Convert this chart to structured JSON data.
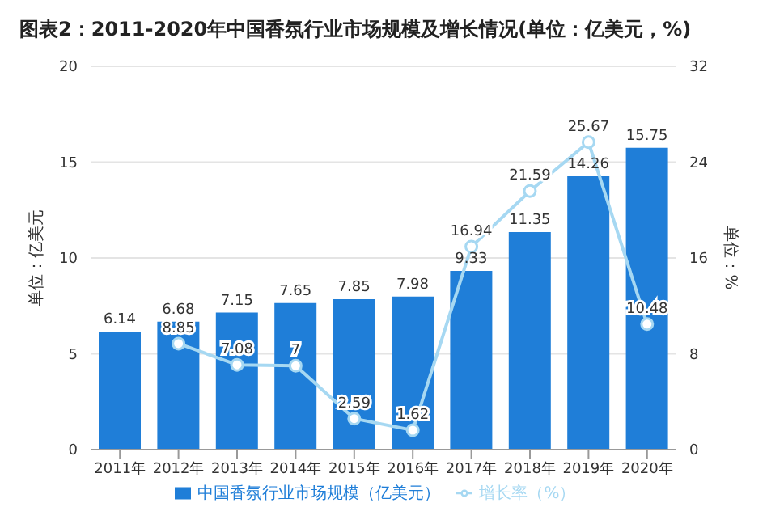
{
  "chart_data": {
    "type": "bar",
    "title": "图表2：2011-2020年中国香氛行业市场规模及增长情况(单位：亿美元，%)",
    "ylabel": "单位：亿美元",
    "y2label": "单位：%",
    "categories": [
      "2011年",
      "2012年",
      "2013年",
      "2014年",
      "2015年",
      "2016年",
      "2017年",
      "2018年",
      "2019年",
      "2020年"
    ],
    "series": [
      {
        "name": "中国香氛行业市场规模（亿美元）",
        "color": "#1f7ed8",
        "values": [
          6.14,
          6.68,
          7.15,
          7.65,
          7.85,
          7.98,
          9.33,
          11.35,
          14.26,
          15.75
        ]
      },
      {
        "name": "增长率（%）",
        "type": "line",
        "axis": "y2",
        "color": "#a6d8f2",
        "marker": "circle",
        "values": [
          null,
          8.85,
          7.08,
          7,
          2.59,
          1.62,
          16.94,
          21.59,
          25.67,
          10.48
        ]
      }
    ],
    "ylim": [
      0,
      20
    ],
    "yticks": [
      0,
      5,
      10,
      15,
      20
    ],
    "y2lim": [
      0,
      32
    ],
    "y2ticks": [
      0,
      8,
      16,
      24,
      32
    ],
    "grid": "y",
    "legend": "bottom",
    "data_labels": true
  }
}
